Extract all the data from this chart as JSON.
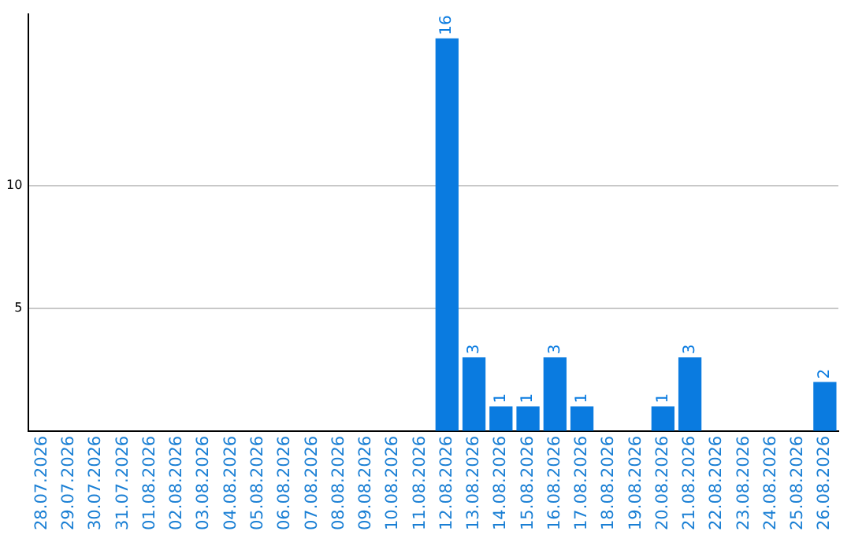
{
  "chart_data": {
    "type": "bar",
    "categories": [
      "28.07.2026",
      "29.07.2026",
      "30.07.2026",
      "31.07.2026",
      "01.08.2026",
      "02.08.2026",
      "03.08.2026",
      "04.08.2026",
      "05.08.2026",
      "06.08.2026",
      "07.08.2026",
      "08.08.2026",
      "09.08.2026",
      "10.08.2026",
      "11.08.2026",
      "12.08.2026",
      "13.08.2026",
      "14.08.2026",
      "15.08.2026",
      "16.08.2026",
      "17.08.2026",
      "18.08.2026",
      "19.08.2026",
      "20.08.2026",
      "21.08.2026",
      "22.08.2026",
      "23.08.2026",
      "24.08.2026",
      "25.08.2026",
      "26.08.2026"
    ],
    "values": [
      0,
      0,
      0,
      0,
      0,
      0,
      0,
      0,
      0,
      0,
      0,
      0,
      0,
      0,
      0,
      16,
      3,
      1,
      1,
      3,
      1,
      0,
      0,
      1,
      3,
      0,
      0,
      0,
      0,
      2
    ],
    "value_labels": [
      null,
      null,
      null,
      null,
      null,
      null,
      null,
      null,
      null,
      null,
      null,
      null,
      null,
      null,
      null,
      "16",
      "3",
      "1",
      "1",
      "3",
      "1",
      null,
      null,
      "1",
      "3",
      null,
      null,
      null,
      null,
      "2"
    ],
    "color": "#0a7be0",
    "ylim": [
      0,
      17
    ],
    "yticks": [
      5,
      10
    ],
    "grid": "y",
    "legend": false
  }
}
